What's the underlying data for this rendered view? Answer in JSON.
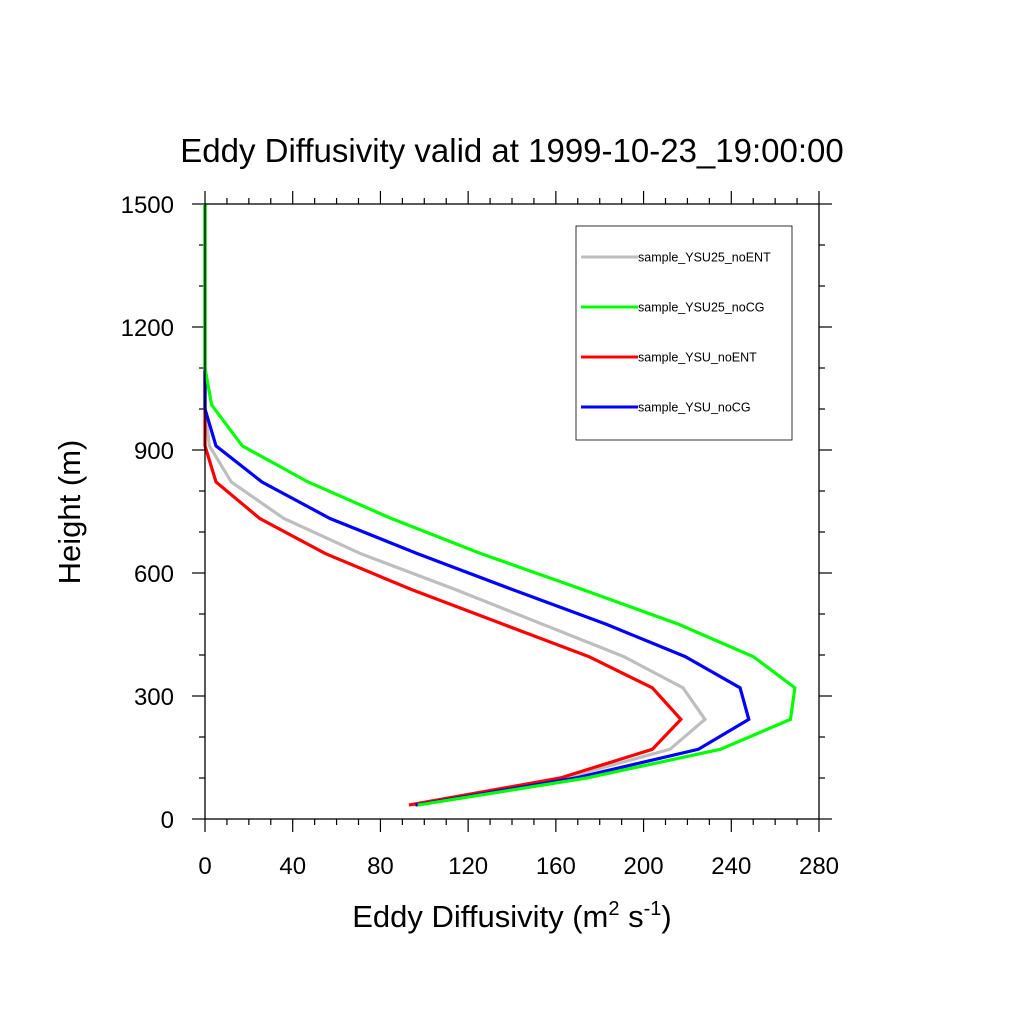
{
  "chart_data": {
    "type": "line",
    "title": "Eddy Diffusivity valid at 1999-10-23_19:00:00",
    "xlabel": {
      "base": "Eddy Diffusivity (m",
      "sup1": "2",
      "mid": " s",
      "sup2": "-1",
      "end": ")"
    },
    "ylabel": "Height (m)",
    "xlim": [
      0,
      280
    ],
    "ylim": [
      0,
      1500
    ],
    "xticks": [
      0,
      40,
      80,
      120,
      160,
      200,
      240,
      280
    ],
    "yticks": [
      0,
      300,
      600,
      900,
      1200,
      1500
    ],
    "xtick_labels": [
      "0",
      "40",
      "80",
      "120",
      "160",
      "200",
      "240",
      "280"
    ],
    "ytick_labels": [
      "0",
      "300",
      "600",
      "900",
      "1200",
      "1500"
    ],
    "grid": false,
    "legend_position": "top-right",
    "series": [
      {
        "name": "sample_YSU25_noENT",
        "color": "#bebebe",
        "points": [
          [
            95,
            34
          ],
          [
            164,
            100
          ],
          [
            212,
            170
          ],
          [
            228,
            243
          ],
          [
            218,
            320
          ],
          [
            191,
            396
          ],
          [
            154,
            475
          ],
          [
            114,
            560
          ],
          [
            71,
            647
          ],
          [
            36,
            733
          ],
          [
            12,
            822
          ],
          [
            2,
            910
          ],
          [
            0,
            1000
          ],
          [
            0,
            1100
          ],
          [
            0,
            1200
          ],
          [
            0,
            1300
          ],
          [
            0,
            1400
          ],
          [
            0,
            1500
          ]
        ]
      },
      {
        "name": "sample_YSU25_noCG",
        "color": "#00ff00",
        "points": [
          [
            97,
            34
          ],
          [
            174,
            100
          ],
          [
            235,
            170
          ],
          [
            267,
            243
          ],
          [
            269,
            320
          ],
          [
            250,
            396
          ],
          [
            216,
            475
          ],
          [
            172,
            560
          ],
          [
            126,
            647
          ],
          [
            85,
            733
          ],
          [
            47,
            822
          ],
          [
            17,
            910
          ],
          [
            3,
            1010
          ],
          [
            0,
            1100
          ],
          [
            0,
            1200
          ],
          [
            0,
            1300
          ],
          [
            0,
            1400
          ],
          [
            0,
            1500
          ]
        ]
      },
      {
        "name": "sample_YSU_noENT",
        "color": "#ff0000",
        "points": [
          [
            93,
            34
          ],
          [
            162,
            100
          ],
          [
            204,
            170
          ],
          [
            217,
            243
          ],
          [
            204,
            320
          ],
          [
            175,
            396
          ],
          [
            136,
            475
          ],
          [
            94,
            560
          ],
          [
            55,
            647
          ],
          [
            25,
            733
          ],
          [
            5,
            822
          ],
          [
            0,
            910
          ],
          [
            0,
            1000
          ],
          [
            0,
            1100
          ],
          [
            0,
            1200
          ],
          [
            0,
            1300
          ],
          [
            0,
            1400
          ],
          [
            0,
            1500
          ]
        ]
      },
      {
        "name": "sample_YSU_noCG",
        "color": "#0000ff",
        "points": [
          [
            96,
            34
          ],
          [
            169,
            100
          ],
          [
            225,
            170
          ],
          [
            248,
            243
          ],
          [
            244,
            320
          ],
          [
            219,
            396
          ],
          [
            183,
            475
          ],
          [
            140,
            560
          ],
          [
            97,
            647
          ],
          [
            57,
            733
          ],
          [
            26,
            822
          ],
          [
            5,
            910
          ],
          [
            0,
            1000
          ],
          [
            0,
            1100
          ],
          [
            0,
            1200
          ],
          [
            0,
            1300
          ],
          [
            0,
            1400
          ],
          [
            0,
            1500
          ]
        ]
      }
    ]
  }
}
